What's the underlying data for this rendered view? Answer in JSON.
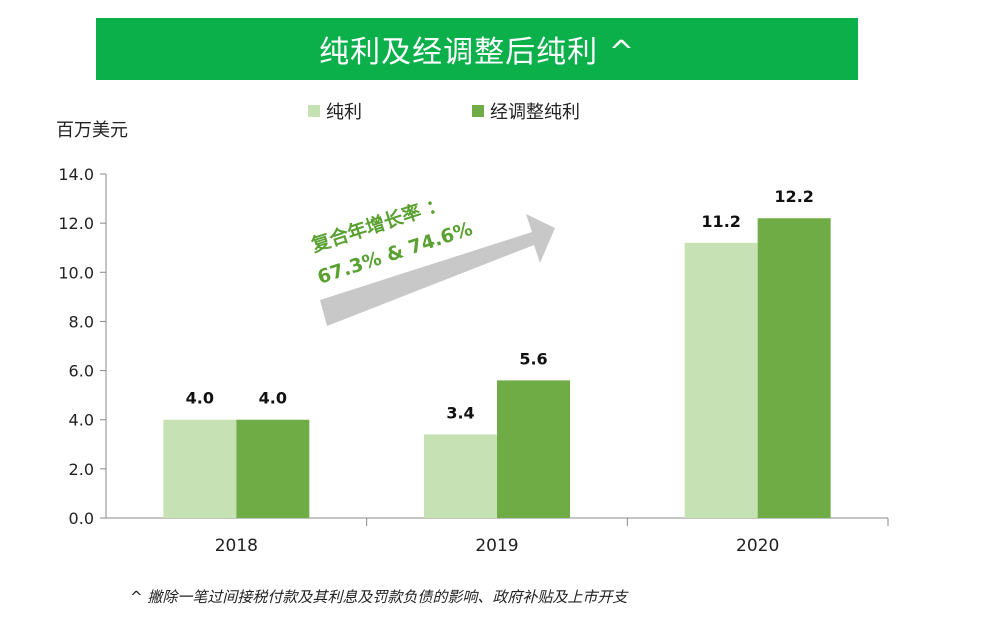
{
  "header": {
    "title": "纯利及经调整后纯利 ^"
  },
  "unit_label": "百万美元",
  "footnote": "^ 撇除一笔过间接税付款及其利息及罚款负债的影响、政府补贴及上市开支",
  "annotation": {
    "line1": "复合年增长率 ：",
    "line2": "67.3% & 74.6%"
  },
  "colors": {
    "title_bg": "#0bb04b",
    "series_light": "#c6e2b5",
    "series_dark": "#6fac46",
    "arrow": "#c8c8c8",
    "annotation_text": "#5aa132"
  },
  "chart_data": {
    "type": "bar",
    "title": "纯利及经调整后纯利 ^",
    "ylabel": "百万美元",
    "xlabel": "",
    "categories": [
      "2018",
      "2019",
      "2020"
    ],
    "ylim": [
      0,
      14
    ],
    "yticks": [
      "0.0",
      "2.0",
      "4.0",
      "6.0",
      "8.0",
      "10.0",
      "12.0",
      "14.0"
    ],
    "legend_position": "top",
    "series": [
      {
        "name": "纯利",
        "values": [
          4.0,
          3.4,
          11.2
        ],
        "labels": [
          "4.0",
          "3.4",
          "11.2"
        ]
      },
      {
        "name": "经调整纯利",
        "values": [
          4.0,
          5.6,
          12.2
        ],
        "labels": [
          "4.0",
          "5.6",
          "12.2"
        ]
      }
    ]
  }
}
